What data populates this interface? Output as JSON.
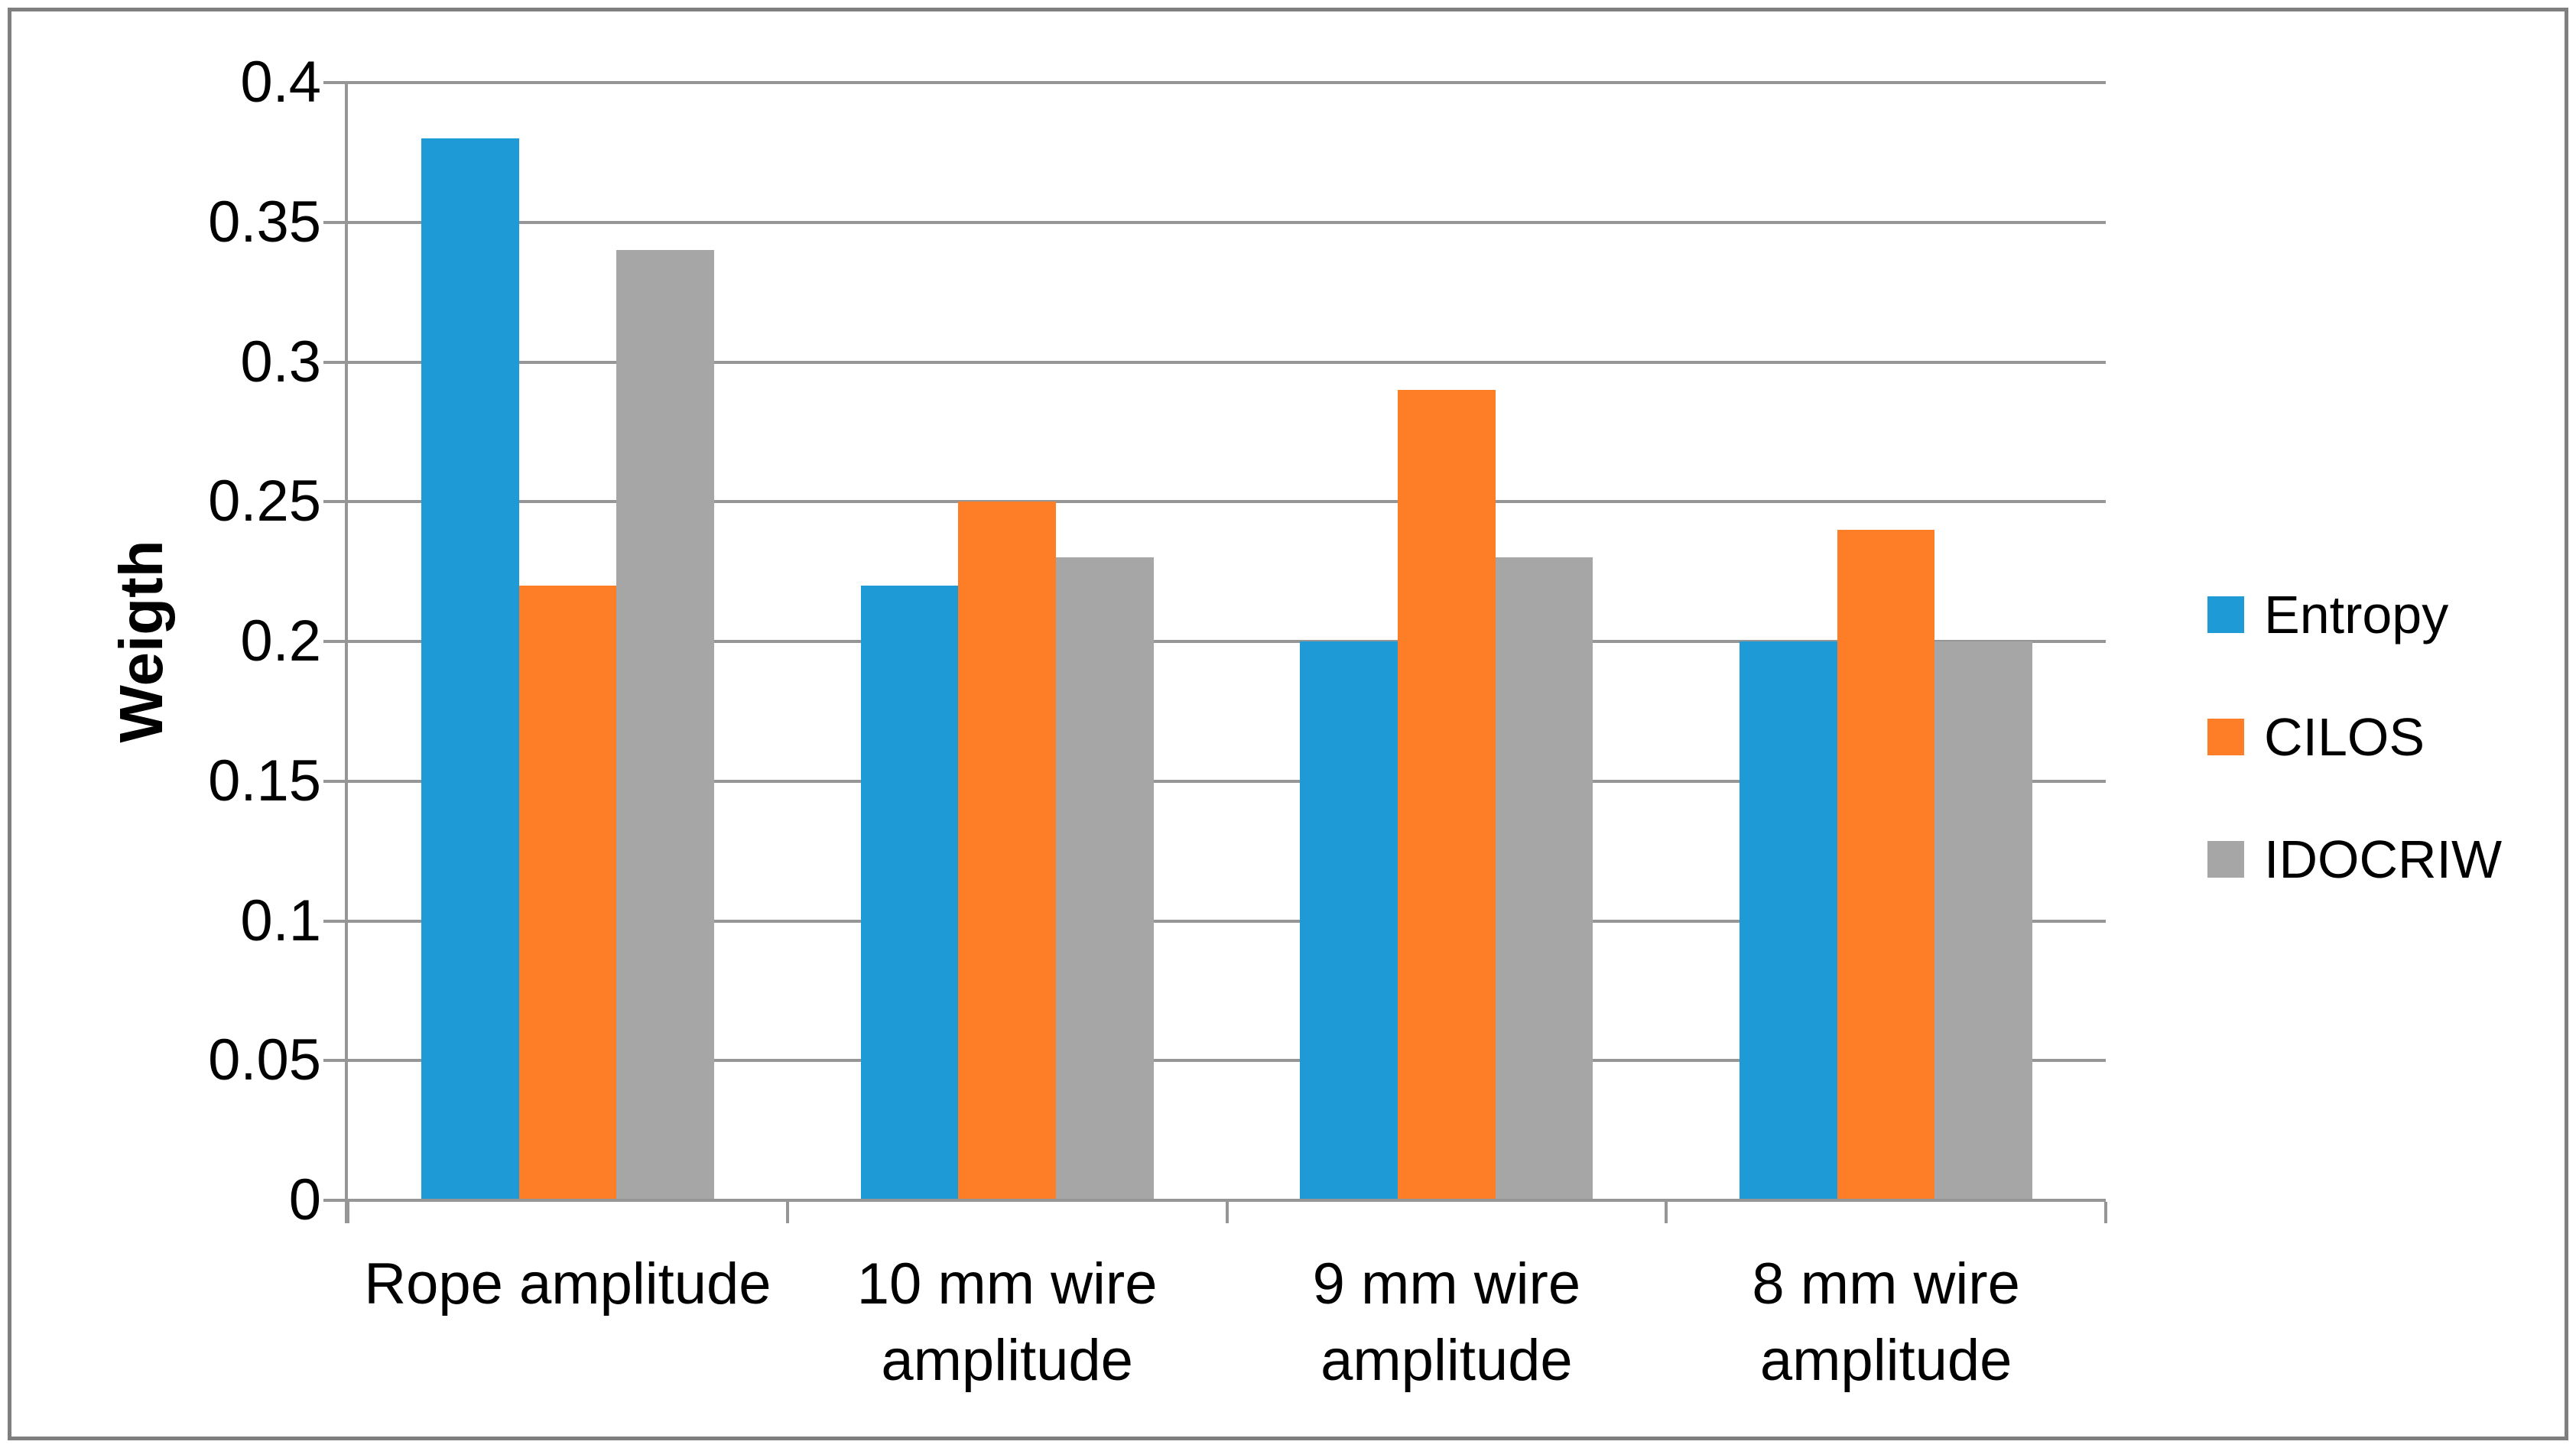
{
  "chart_data": {
    "type": "bar",
    "title": "",
    "categories": [
      "Rope amplitude",
      "10 mm wire amplitude",
      "9 mm wire amplitude",
      "8 mm wire amplitude"
    ],
    "category_lines": [
      [
        "Rope amplitude"
      ],
      [
        "10 mm wire",
        "amplitude"
      ],
      [
        "9 mm wire",
        "amplitude"
      ],
      [
        "8 mm wire",
        "amplitude"
      ]
    ],
    "series": [
      {
        "name": "Entropy",
        "color": "#1E9BD7",
        "values": [
          0.38,
          0.22,
          0.2,
          0.2
        ]
      },
      {
        "name": "CILOS",
        "color": "#FD7E27",
        "values": [
          0.22,
          0.25,
          0.29,
          0.24
        ]
      },
      {
        "name": "IDOCRIW",
        "color": "#A6A6A6",
        "values": [
          0.34,
          0.23,
          0.23,
          0.2
        ]
      }
    ],
    "xlabel": "",
    "ylabel": "Weigth",
    "ylim": [
      0,
      0.4
    ],
    "ytick_step": 0.05,
    "ytick_labels": [
      "0",
      "0.05",
      "0.1",
      "0.15",
      "0.2",
      "0.25",
      "0.3",
      "0.35",
      "0.4"
    ],
    "grid": true,
    "legend_position": "right",
    "gap_width_percent": 150
  },
  "colors": {
    "background": "#FFFFFF",
    "frame_border": "#7F7F7F",
    "gridline": "#969696",
    "axis": "#969696",
    "text": "#000000"
  }
}
